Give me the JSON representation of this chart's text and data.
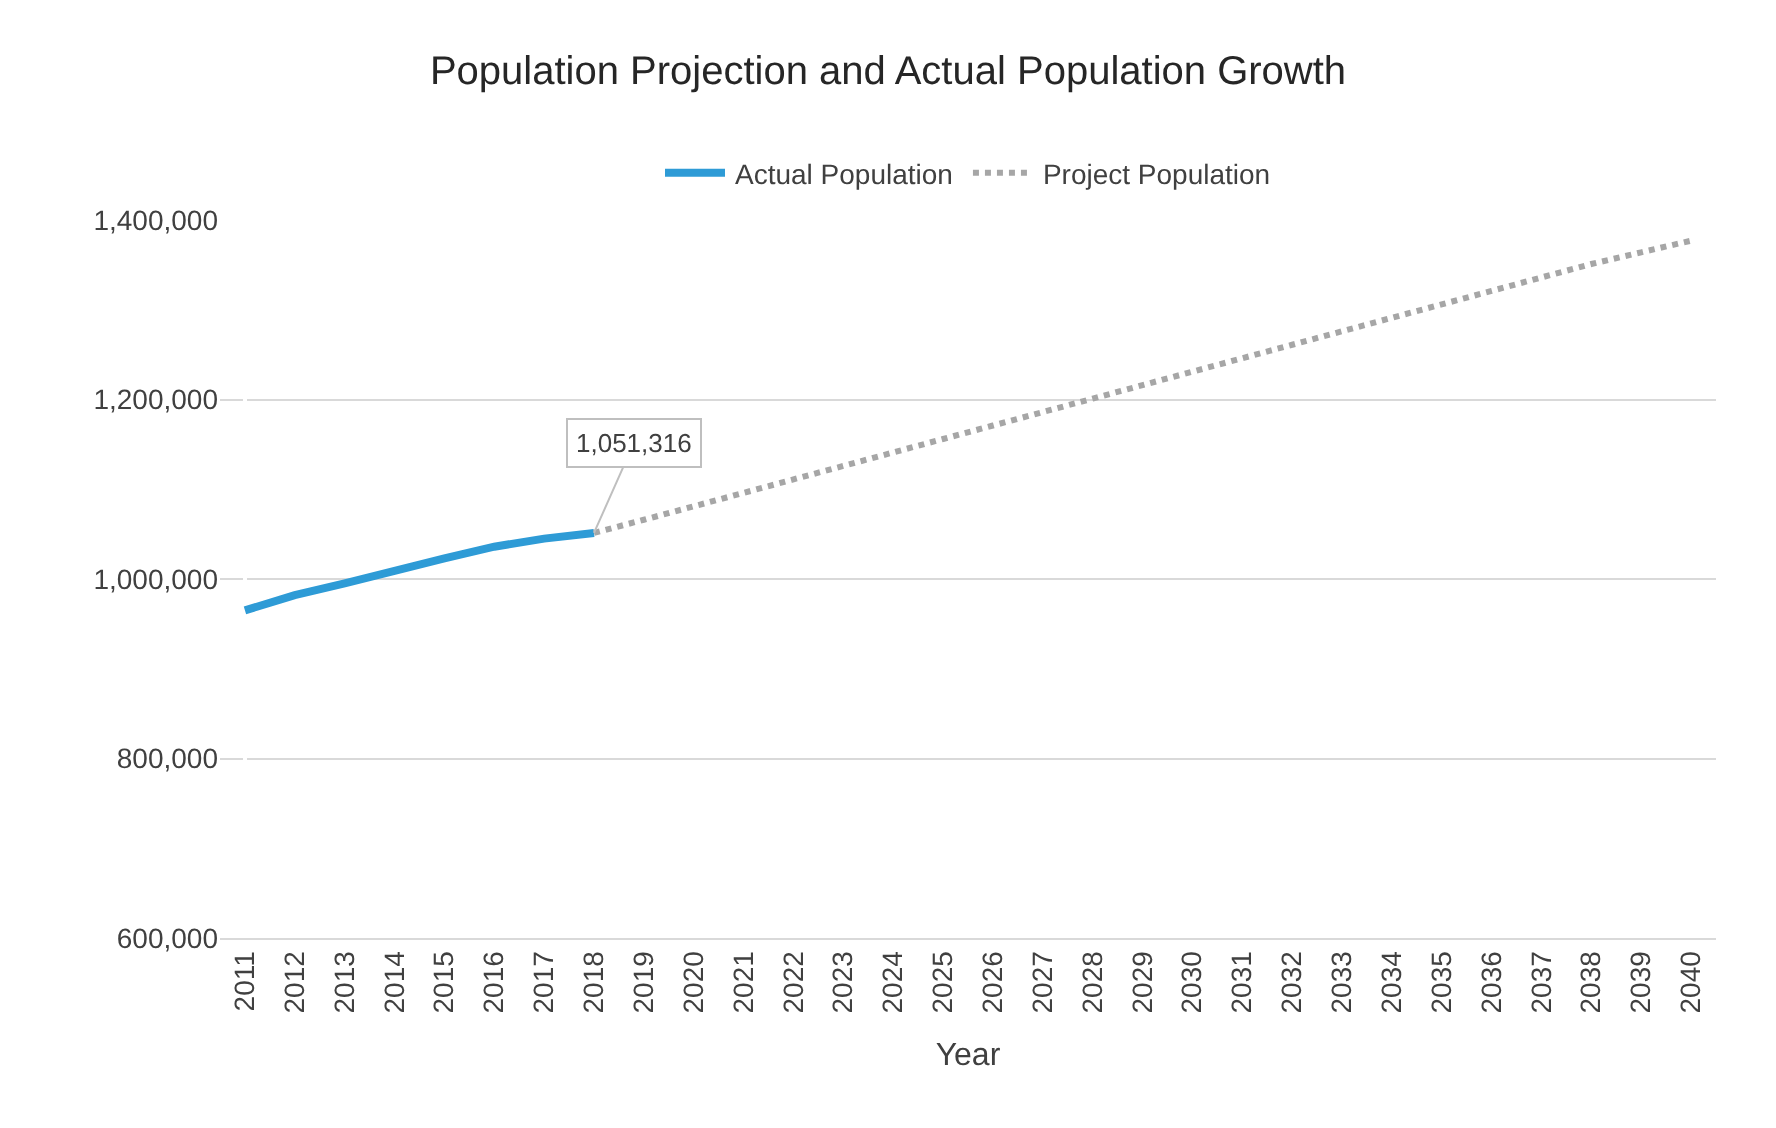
{
  "chart_data": {
    "type": "line",
    "title": "Population Projection and Actual Population Growth",
    "xlabel": "Year",
    "categories": [
      "2011",
      "2012",
      "2013",
      "2014",
      "2015",
      "2016",
      "2017",
      "2018",
      "2019",
      "2020",
      "2021",
      "2022",
      "2023",
      "2024",
      "2025",
      "2026",
      "2027",
      "2028",
      "2029",
      "2030",
      "2031",
      "2032",
      "2033",
      "2034",
      "2035",
      "2036",
      "2037",
      "2038",
      "2039",
      "2040"
    ],
    "series": [
      {
        "name": "Actual Population",
        "color": "#2e9bd6",
        "line_style": "solid",
        "values": [
          965000,
          982000,
          995000,
          1009000,
          1023000,
          1036000,
          1045000,
          1051316,
          null,
          null,
          null,
          null,
          null,
          null,
          null,
          null,
          null,
          null,
          null,
          null,
          null,
          null,
          null,
          null,
          null,
          null,
          null,
          null,
          null,
          null
        ]
      },
      {
        "name": "Project Population",
        "color": "#a6a6a6",
        "line_style": "dotted",
        "values": [
          null,
          null,
          null,
          null,
          null,
          null,
          null,
          1051316,
          1066000,
          1081000,
          1096000,
          1111000,
          1126000,
          1141000,
          1156000,
          1171000,
          1186000,
          1201000,
          1216000,
          1231000,
          1246000,
          1261000,
          1276000,
          1291000,
          1306000,
          1321000,
          1336000,
          1351000,
          1364000,
          1377000
        ]
      }
    ],
    "annotations": [
      {
        "text": "1,051,316",
        "x": "2018",
        "y": 1051316
      }
    ],
    "ylim": [
      600000,
      1400000
    ],
    "yticks": [
      {
        "value": 600000,
        "label": "600,000"
      },
      {
        "value": 800000,
        "label": "800,000"
      },
      {
        "value": 1000000,
        "label": "1,000,000"
      },
      {
        "value": 1200000,
        "label": "1,200,000"
      },
      {
        "value": 1400000,
        "label": "1,400,000"
      }
    ],
    "grid": "y",
    "legend": "top",
    "marker": "none"
  }
}
